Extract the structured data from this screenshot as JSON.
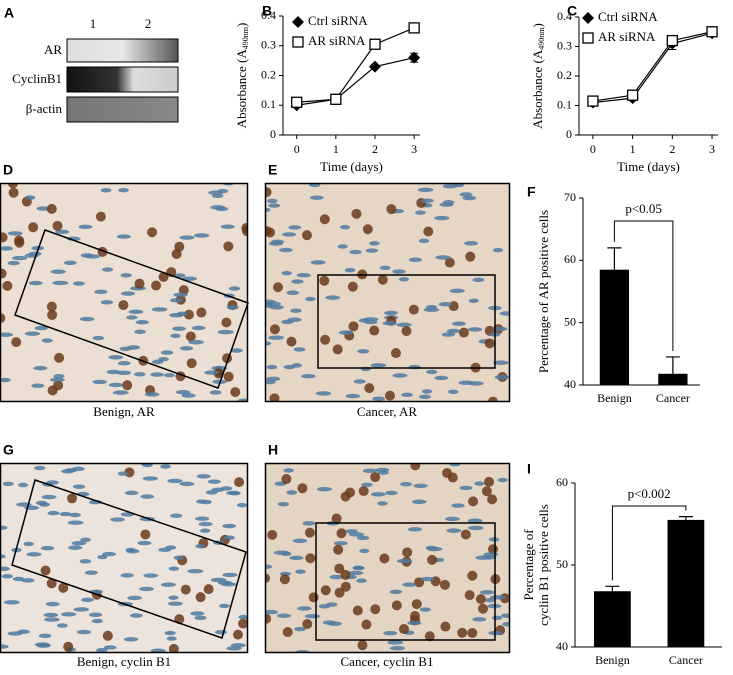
{
  "blot": {
    "panel": "A",
    "lanes": [
      "1",
      "2"
    ],
    "rows": [
      "AR",
      "CyclinB1",
      "β-actin"
    ]
  },
  "images": [
    {
      "panel": "D",
      "caption": "Benign, AR"
    },
    {
      "panel": "E",
      "caption": "Cancer, AR"
    },
    {
      "panel": "G",
      "caption": "Benign, cyclin B1"
    },
    {
      "panel": "H",
      "caption": "Cancer, cyclin B1"
    }
  ],
  "chart_data": [
    {
      "type": "line",
      "panel": "B",
      "xlabel": "Time (days)",
      "ylabel": [
        "Absorbance (A",
        "490nm",
        ")"
      ],
      "x": [
        0,
        1,
        2,
        3
      ],
      "xlim": [
        -0.35,
        3.15
      ],
      "xticks": [
        0,
        1,
        2,
        3
      ],
      "ylim": [
        0,
        0.4
      ],
      "yticks": [
        0,
        0.1,
        0.2,
        0.3,
        0.4
      ],
      "series": [
        {
          "name": "Ctrl siRNA",
          "color": "#000000",
          "marker": "diamond",
          "values": [
            0.1,
            0.12,
            0.23,
            0.26
          ],
          "errors": [
            0.005,
            0.005,
            0.005,
            0.015
          ]
        },
        {
          "name": "AR siRNA",
          "color": "#000000",
          "marker": "square",
          "values": [
            0.11,
            0.12,
            0.305,
            0.36
          ],
          "errors": [
            0.005,
            0.005,
            0.008,
            0.008
          ]
        }
      ]
    },
    {
      "type": "line",
      "panel": "C",
      "xlabel": "Time (days)",
      "ylabel": [
        "Absorbance (A",
        "490nm",
        ")"
      ],
      "x": [
        0,
        1,
        2,
        3
      ],
      "xlim": [
        -0.35,
        3.15
      ],
      "xticks": [
        0,
        1,
        2,
        3
      ],
      "ylim": [
        0,
        0.4
      ],
      "yticks": [
        0,
        0.1,
        0.2,
        0.3,
        0.4
      ],
      "series": [
        {
          "name": "Ctrl siRNA",
          "color": "#000000",
          "marker": "diamond",
          "values": [
            0.11,
            0.125,
            0.31,
            0.345
          ],
          "errors": [
            0.005,
            0.005,
            0.02,
            0.005
          ]
        },
        {
          "name": "AR siRNA",
          "color": "#000000",
          "marker": "square",
          "values": [
            0.115,
            0.135,
            0.32,
            0.35
          ],
          "errors": [
            0.005,
            0.005,
            0.015,
            0.008
          ]
        }
      ]
    },
    {
      "type": "bar",
      "panel": "F",
      "ylabel": [
        "Percentage of AR positive cells"
      ],
      "color": "#000000",
      "categories": [
        "Benign",
        "Cancer"
      ],
      "values": [
        58.5,
        41.8
      ],
      "errors": [
        3.5,
        2.7
      ],
      "ylim": [
        40,
        70
      ],
      "yticks": [
        40,
        50,
        60,
        70
      ],
      "annotation": "p<0.05"
    },
    {
      "type": "bar",
      "panel": "I",
      "ylabel": [
        "Percentage of",
        "cyclin B1 positive cells"
      ],
      "color": "#000000",
      "categories": [
        "Benign",
        "Cancer"
      ],
      "values": [
        46.8,
        55.5
      ],
      "errors": [
        0.6,
        0.4
      ],
      "ylim": [
        40,
        60
      ],
      "yticks": [
        40,
        50,
        60
      ],
      "annotation": "p<0.002"
    }
  ]
}
